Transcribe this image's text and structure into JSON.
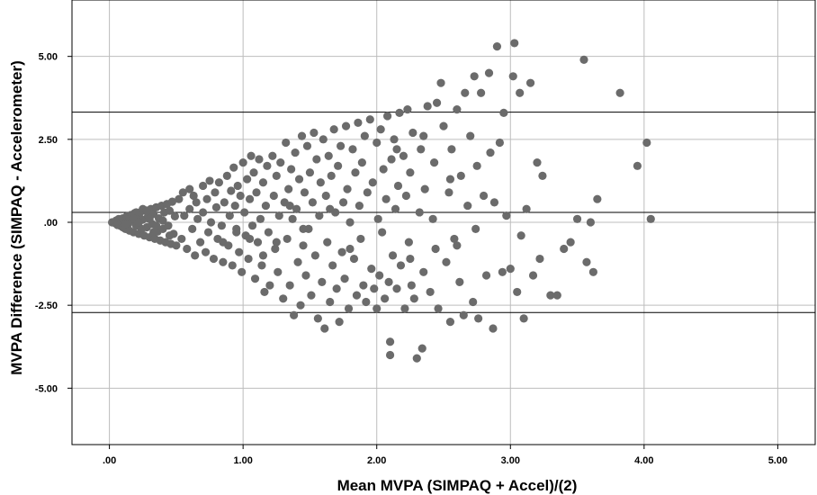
{
  "chart_data": {
    "type": "scatter",
    "title": "",
    "xlabel": "Mean MVPA (SIMPAQ + Accel)/(2)",
    "ylabel": "MVPA Difference (SIMPAQ - Accelerometer)",
    "xlim": [
      -0.28,
      5.28
    ],
    "ylim": [
      -6.7,
      6.7
    ],
    "x_ticks": [
      0,
      1,
      2,
      3,
      4,
      5
    ],
    "x_tick_labels": [
      ".00",
      "1.00",
      "2.00",
      "3.00",
      "4.00",
      "5.00"
    ],
    "y_ticks": [
      5,
      2.5,
      0,
      -2.5,
      -5
    ],
    "y_tick_labels": [
      "5.00",
      "2.50",
      ".00",
      "-2.50",
      "-5.00"
    ],
    "grid": true,
    "reference_lines": [
      3.32,
      0.3,
      -2.72
    ],
    "marker_color": "#6b6b6b",
    "line_color": "#000000",
    "grid_color": "#bdbdbd",
    "points": [
      [
        0.02,
        0.0
      ],
      [
        0.04,
        -0.02
      ],
      [
        0.05,
        0.05
      ],
      [
        0.06,
        -0.08
      ],
      [
        0.07,
        0.1
      ],
      [
        0.08,
        -0.1
      ],
      [
        0.09,
        0.02
      ],
      [
        0.1,
        -0.15
      ],
      [
        0.1,
        0.12
      ],
      [
        0.12,
        -0.2
      ],
      [
        0.13,
        0.18
      ],
      [
        0.14,
        -0.05
      ],
      [
        0.15,
        -0.25
      ],
      [
        0.16,
        0.22
      ],
      [
        0.17,
        0.05
      ],
      [
        0.18,
        -0.3
      ],
      [
        0.19,
        0.28
      ],
      [
        0.2,
        -0.1
      ],
      [
        0.21,
        0.15
      ],
      [
        0.22,
        -0.35
      ],
      [
        0.23,
        0.3
      ],
      [
        0.24,
        -0.2
      ],
      [
        0.25,
        0.08
      ],
      [
        0.26,
        -0.4
      ],
      [
        0.27,
        0.36
      ],
      [
        0.28,
        -0.15
      ],
      [
        0.29,
        0.2
      ],
      [
        0.3,
        -0.45
      ],
      [
        0.31,
        0.4
      ],
      [
        0.32,
        -0.05
      ],
      [
        0.33,
        0.25
      ],
      [
        0.34,
        -0.5
      ],
      [
        0.35,
        0.45
      ],
      [
        0.36,
        -0.28
      ],
      [
        0.37,
        0.12
      ],
      [
        0.38,
        -0.55
      ],
      [
        0.39,
        0.5
      ],
      [
        0.4,
        -0.2
      ],
      [
        0.41,
        0.3
      ],
      [
        0.42,
        -0.6
      ],
      [
        0.43,
        0.55
      ],
      [
        0.44,
        -0.1
      ],
      [
        0.45,
        0.35
      ],
      [
        0.46,
        -0.65
      ],
      [
        0.47,
        0.62
      ],
      [
        0.48,
        -0.35
      ],
      [
        0.49,
        0.18
      ],
      [
        0.5,
        -0.7
      ],
      [
        0.15,
        0.1
      ],
      [
        0.2,
        0.3
      ],
      [
        0.25,
        0.4
      ],
      [
        0.3,
        0.1
      ],
      [
        0.35,
        -0.1
      ],
      [
        0.4,
        0.05
      ],
      [
        0.45,
        -0.4
      ],
      [
        0.12,
        -0.05
      ],
      [
        0.18,
        0.12
      ],
      [
        0.22,
        0.0
      ],
      [
        0.28,
        0.35
      ],
      [
        0.33,
        -0.3
      ],
      [
        0.52,
        0.7
      ],
      [
        0.54,
        -0.5
      ],
      [
        0.55,
        0.9
      ],
      [
        0.56,
        0.2
      ],
      [
        0.58,
        -0.8
      ],
      [
        0.6,
        1.0
      ],
      [
        0.6,
        0.4
      ],
      [
        0.62,
        -0.2
      ],
      [
        0.63,
        0.8
      ],
      [
        0.64,
        -1.0
      ],
      [
        0.65,
        0.6
      ],
      [
        0.66,
        0.1
      ],
      [
        0.68,
        -0.6
      ],
      [
        0.7,
        1.1
      ],
      [
        0.7,
        0.3
      ],
      [
        0.72,
        -0.9
      ],
      [
        0.73,
        0.7
      ],
      [
        0.74,
        -0.3
      ],
      [
        0.75,
        1.25
      ],
      [
        0.76,
        0.0
      ],
      [
        0.78,
        -1.1
      ],
      [
        0.79,
        0.9
      ],
      [
        0.8,
        0.45
      ],
      [
        0.81,
        -0.5
      ],
      [
        0.82,
        1.2
      ],
      [
        0.84,
        -0.1
      ],
      [
        0.85,
        -1.2
      ],
      [
        0.86,
        0.6
      ],
      [
        0.88,
        1.4
      ],
      [
        0.89,
        -0.7
      ],
      [
        0.9,
        0.2
      ],
      [
        0.91,
        0.95
      ],
      [
        0.92,
        -1.3
      ],
      [
        0.93,
        1.65
      ],
      [
        0.94,
        0.5
      ],
      [
        0.95,
        -0.2
      ],
      [
        0.96,
        1.1
      ],
      [
        0.97,
        -0.9
      ],
      [
        0.98,
        0.8
      ],
      [
        0.99,
        -1.5
      ],
      [
        1.0,
        1.8
      ],
      [
        1.01,
        0.3
      ],
      [
        1.02,
        -0.4
      ],
      [
        1.03,
        1.3
      ],
      [
        1.04,
        -1.1
      ],
      [
        1.05,
        0.7
      ],
      [
        1.06,
        2.0
      ],
      [
        1.07,
        -0.1
      ],
      [
        1.08,
        1.5
      ],
      [
        1.09,
        -1.7
      ],
      [
        1.1,
        0.9
      ],
      [
        1.11,
        -0.6
      ],
      [
        1.12,
        1.9
      ],
      [
        1.13,
        0.1
      ],
      [
        1.14,
        -1.3
      ],
      [
        1.15,
        1.2
      ],
      [
        1.16,
        -2.1
      ],
      [
        1.17,
        0.5
      ],
      [
        1.18,
        1.7
      ],
      [
        1.19,
        -0.3
      ],
      [
        1.2,
        -1.9
      ],
      [
        1.22,
        2.0
      ],
      [
        1.23,
        0.8
      ],
      [
        1.24,
        -0.8
      ],
      [
        1.25,
        1.4
      ],
      [
        1.26,
        -1.5
      ],
      [
        1.27,
        0.2
      ],
      [
        1.28,
        1.8
      ],
      [
        1.3,
        -2.3
      ],
      [
        1.31,
        0.6
      ],
      [
        1.32,
        2.4
      ],
      [
        1.33,
        -0.5
      ],
      [
        1.34,
        1.0
      ],
      [
        1.35,
        -1.9
      ],
      [
        1.36,
        1.6
      ],
      [
        1.37,
        0.1
      ],
      [
        1.38,
        -2.8
      ],
      [
        1.39,
        2.1
      ],
      [
        1.4,
        0.4
      ],
      [
        1.41,
        -1.2
      ],
      [
        1.42,
        1.3
      ],
      [
        1.43,
        -2.5
      ],
      [
        1.44,
        2.6
      ],
      [
        1.45,
        -0.7
      ],
      [
        1.46,
        0.9
      ],
      [
        1.47,
        -1.6
      ],
      [
        1.48,
        2.3
      ],
      [
        1.49,
        -0.2
      ],
      [
        1.5,
        1.5
      ],
      [
        1.51,
        -2.2
      ],
      [
        1.52,
        0.6
      ],
      [
        1.53,
        2.7
      ],
      [
        1.54,
        -1.0
      ],
      [
        1.55,
        1.9
      ],
      [
        1.56,
        -2.9
      ],
      [
        1.57,
        0.2
      ],
      [
        1.58,
        1.2
      ],
      [
        1.59,
        -1.8
      ],
      [
        1.6,
        2.5
      ],
      [
        1.61,
        -3.2
      ],
      [
        1.62,
        0.8
      ],
      [
        1.63,
        -0.6
      ],
      [
        1.64,
        2.0
      ],
      [
        1.65,
        -2.4
      ],
      [
        1.66,
        1.4
      ],
      [
        1.67,
        -1.3
      ],
      [
        1.68,
        2.8
      ],
      [
        1.69,
        0.3
      ],
      [
        1.7,
        -2.0
      ],
      [
        1.71,
        1.7
      ],
      [
        1.72,
        -3.0
      ],
      [
        1.73,
        2.3
      ],
      [
        1.74,
        -0.9
      ],
      [
        1.75,
        0.6
      ],
      [
        1.76,
        -1.7
      ],
      [
        1.77,
        2.9
      ],
      [
        1.78,
        1.0
      ],
      [
        1.79,
        -2.6
      ],
      [
        1.8,
        0.0
      ],
      [
        1.82,
        2.2
      ],
      [
        1.83,
        -1.1
      ],
      [
        1.84,
        1.5
      ],
      [
        1.85,
        -2.2
      ],
      [
        1.86,
        3.0
      ],
      [
        1.87,
        0.5
      ],
      [
        1.88,
        -0.5
      ],
      [
        1.89,
        1.8
      ],
      [
        1.9,
        -1.9
      ],
      [
        1.91,
        2.6
      ],
      [
        1.92,
        -2.4
      ],
      [
        1.93,
        0.9
      ],
      [
        1.95,
        3.1
      ],
      [
        1.96,
        -1.4
      ],
      [
        1.97,
        1.2
      ],
      [
        1.98,
        -2.0
      ],
      [
        2.0,
        2.4
      ],
      [
        2.01,
        0.1
      ],
      [
        2.02,
        -1.6
      ],
      [
        2.03,
        2.8
      ],
      [
        2.04,
        -0.3
      ],
      [
        2.05,
        1.6
      ],
      [
        2.06,
        -2.3
      ],
      [
        2.07,
        0.7
      ],
      [
        2.08,
        3.2
      ],
      [
        2.09,
        -1.8
      ],
      [
        2.1,
        -3.6
      ],
      [
        2.1,
        -4.0
      ],
      [
        2.11,
        1.9
      ],
      [
        2.12,
        -1.0
      ],
      [
        2.13,
        2.5
      ],
      [
        2.14,
        0.4
      ],
      [
        2.15,
        -2.0
      ],
      [
        2.16,
        1.1
      ],
      [
        2.17,
        3.3
      ],
      [
        2.18,
        -1.3
      ],
      [
        2.2,
        2.0
      ],
      [
        2.21,
        -2.6
      ],
      [
        2.22,
        0.8
      ],
      [
        2.23,
        3.4
      ],
      [
        2.24,
        -0.6
      ],
      [
        2.25,
        1.5
      ],
      [
        2.26,
        -1.9
      ],
      [
        2.27,
        2.7
      ],
      [
        2.28,
        -2.3
      ],
      [
        2.3,
        -4.1
      ],
      [
        2.32,
        0.3
      ],
      [
        2.33,
        2.2
      ],
      [
        2.34,
        -3.8
      ],
      [
        2.35,
        -1.5
      ],
      [
        2.36,
        1.0
      ],
      [
        2.38,
        3.5
      ],
      [
        2.4,
        -2.1
      ],
      [
        2.42,
        0.1
      ],
      [
        2.43,
        1.8
      ],
      [
        2.44,
        -0.8
      ],
      [
        2.45,
        3.6
      ],
      [
        2.46,
        -2.6
      ],
      [
        2.48,
        4.2
      ],
      [
        2.5,
        2.9
      ],
      [
        2.52,
        -1.2
      ],
      [
        2.54,
        0.9
      ],
      [
        2.55,
        -3.0
      ],
      [
        2.56,
        2.2
      ],
      [
        2.58,
        -0.5
      ],
      [
        2.6,
        3.4
      ],
      [
        2.62,
        -1.8
      ],
      [
        2.63,
        1.4
      ],
      [
        2.65,
        -2.8
      ],
      [
        2.66,
        3.9
      ],
      [
        2.68,
        0.5
      ],
      [
        2.7,
        2.6
      ],
      [
        2.72,
        -2.4
      ],
      [
        2.73,
        4.4
      ],
      [
        2.74,
        -0.2
      ],
      [
        2.75,
        1.7
      ],
      [
        2.76,
        -2.9
      ],
      [
        2.78,
        3.9
      ],
      [
        2.8,
        0.8
      ],
      [
        2.82,
        -1.6
      ],
      [
        2.84,
        4.5
      ],
      [
        2.85,
        2.1
      ],
      [
        2.87,
        -3.2
      ],
      [
        2.88,
        0.6
      ],
      [
        2.9,
        5.3
      ],
      [
        2.92,
        2.4
      ],
      [
        2.94,
        -1.5
      ],
      [
        2.95,
        3.3
      ],
      [
        2.97,
        0.2
      ],
      [
        3.0,
        -1.4
      ],
      [
        3.02,
        4.4
      ],
      [
        3.03,
        5.4
      ],
      [
        3.05,
        -2.1
      ],
      [
        3.07,
        3.9
      ],
      [
        3.1,
        -2.9
      ],
      [
        3.12,
        0.4
      ],
      [
        3.15,
        4.2
      ],
      [
        3.17,
        -1.6
      ],
      [
        3.2,
        1.8
      ],
      [
        3.22,
        -1.1
      ],
      [
        3.24,
        1.4
      ],
      [
        3.3,
        -2.2
      ],
      [
        3.35,
        -2.2
      ],
      [
        3.4,
        -0.8
      ],
      [
        3.45,
        -0.6
      ],
      [
        3.5,
        0.1
      ],
      [
        3.55,
        4.9
      ],
      [
        3.57,
        -1.2
      ],
      [
        3.6,
        0.0
      ],
      [
        3.62,
        -1.5
      ],
      [
        3.65,
        0.7
      ],
      [
        3.82,
        3.9
      ],
      [
        3.95,
        1.7
      ],
      [
        4.02,
        2.4
      ],
      [
        4.05,
        0.1
      ],
      [
        2.15,
        2.2
      ],
      [
        2.35,
        2.6
      ],
      [
        2.55,
        1.3
      ],
      [
        1.45,
        -0.2
      ],
      [
        1.25,
        -0.6
      ],
      [
        1.15,
        -1.0
      ],
      [
        1.05,
        -0.5
      ],
      [
        0.95,
        -0.3
      ],
      [
        0.85,
        -0.6
      ],
      [
        2.0,
        -2.6
      ],
      [
        1.8,
        -0.8
      ],
      [
        2.25,
        -1.1
      ],
      [
        2.6,
        -0.7
      ],
      [
        3.08,
        -0.4
      ],
      [
        1.65,
        0.4
      ],
      [
        1.35,
        0.5
      ]
    ]
  }
}
